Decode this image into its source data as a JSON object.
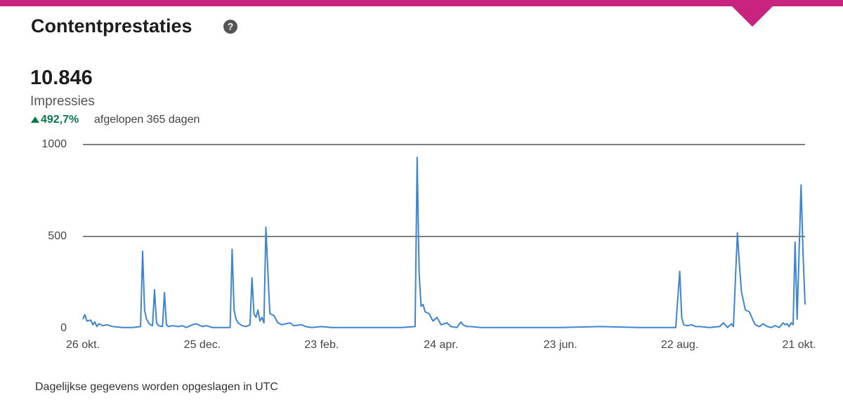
{
  "header": {
    "title": "Contentprestaties"
  },
  "metric": {
    "value": "10.846",
    "label": "Impressies",
    "change": "492,7%",
    "period": "afgelopen 365 dagen"
  },
  "chart_data": {
    "type": "line",
    "color": "#3d85d0",
    "grid": true,
    "xlim": [
      0,
      363
    ],
    "ylim": [
      0,
      1000
    ],
    "yticks": [
      0,
      500,
      1000
    ],
    "xticks": [
      {
        "value": 0,
        "label": "26 okt."
      },
      {
        "value": 60,
        "label": "25 dec."
      },
      {
        "value": 120,
        "label": "23 feb."
      },
      {
        "value": 180,
        "label": "24 apr."
      },
      {
        "value": 240,
        "label": "23 jun."
      },
      {
        "value": 300,
        "label": "22 aug."
      },
      {
        "value": 360,
        "label": "21 okt."
      }
    ],
    "x": [
      0,
      1,
      2,
      4,
      5,
      6,
      7,
      8,
      10,
      12,
      15,
      20,
      25,
      29,
      30,
      31,
      32,
      33,
      34,
      35,
      36,
      37,
      38,
      40,
      41,
      42,
      43,
      45,
      48,
      50,
      52,
      55,
      57,
      58,
      60,
      62,
      65,
      70,
      74,
      75,
      76,
      77,
      78,
      80,
      82,
      84,
      85,
      86,
      87,
      88,
      89,
      90,
      91,
      92,
      93,
      94,
      95,
      96,
      98,
      100,
      102,
      104,
      106,
      110,
      112,
      115,
      120,
      125,
      140,
      160,
      167,
      168,
      169,
      170,
      171,
      172,
      174,
      176,
      178,
      180,
      183,
      185,
      188,
      190,
      191,
      193,
      195,
      200,
      220,
      240,
      260,
      280,
      298,
      300,
      301,
      302,
      304,
      306,
      308,
      310,
      315,
      320,
      322,
      324,
      326,
      327,
      329,
      330,
      331,
      332,
      333,
      334,
      335,
      337,
      338,
      340,
      342,
      344,
      346,
      348,
      350,
      352,
      353,
      354,
      355,
      356,
      357,
      358,
      359,
      361,
      362,
      363
    ],
    "values": [
      50,
      75,
      40,
      45,
      20,
      35,
      10,
      25,
      15,
      20,
      10,
      5,
      5,
      10,
      420,
      100,
      50,
      30,
      20,
      15,
      210,
      30,
      15,
      10,
      195,
      20,
      10,
      15,
      10,
      15,
      5,
      20,
      25,
      20,
      10,
      15,
      5,
      5,
      5,
      430,
      100,
      50,
      30,
      15,
      10,
      20,
      275,
      80,
      60,
      100,
      40,
      60,
      30,
      550,
      300,
      80,
      75,
      70,
      30,
      20,
      25,
      30,
      15,
      20,
      10,
      5,
      10,
      5,
      5,
      5,
      10,
      930,
      300,
      120,
      130,
      90,
      80,
      40,
      60,
      20,
      30,
      10,
      5,
      35,
      20,
      10,
      10,
      5,
      5,
      5,
      10,
      5,
      5,
      310,
      60,
      20,
      15,
      20,
      10,
      10,
      5,
      10,
      30,
      5,
      25,
      10,
      520,
      350,
      200,
      150,
      100,
      95,
      90,
      40,
      20,
      10,
      25,
      10,
      5,
      15,
      5,
      30,
      20,
      25,
      10,
      30,
      20,
      470,
      50,
      780,
      400,
      130
    ]
  },
  "note": "Dagelijkse gegevens worden opgeslagen in UTC"
}
